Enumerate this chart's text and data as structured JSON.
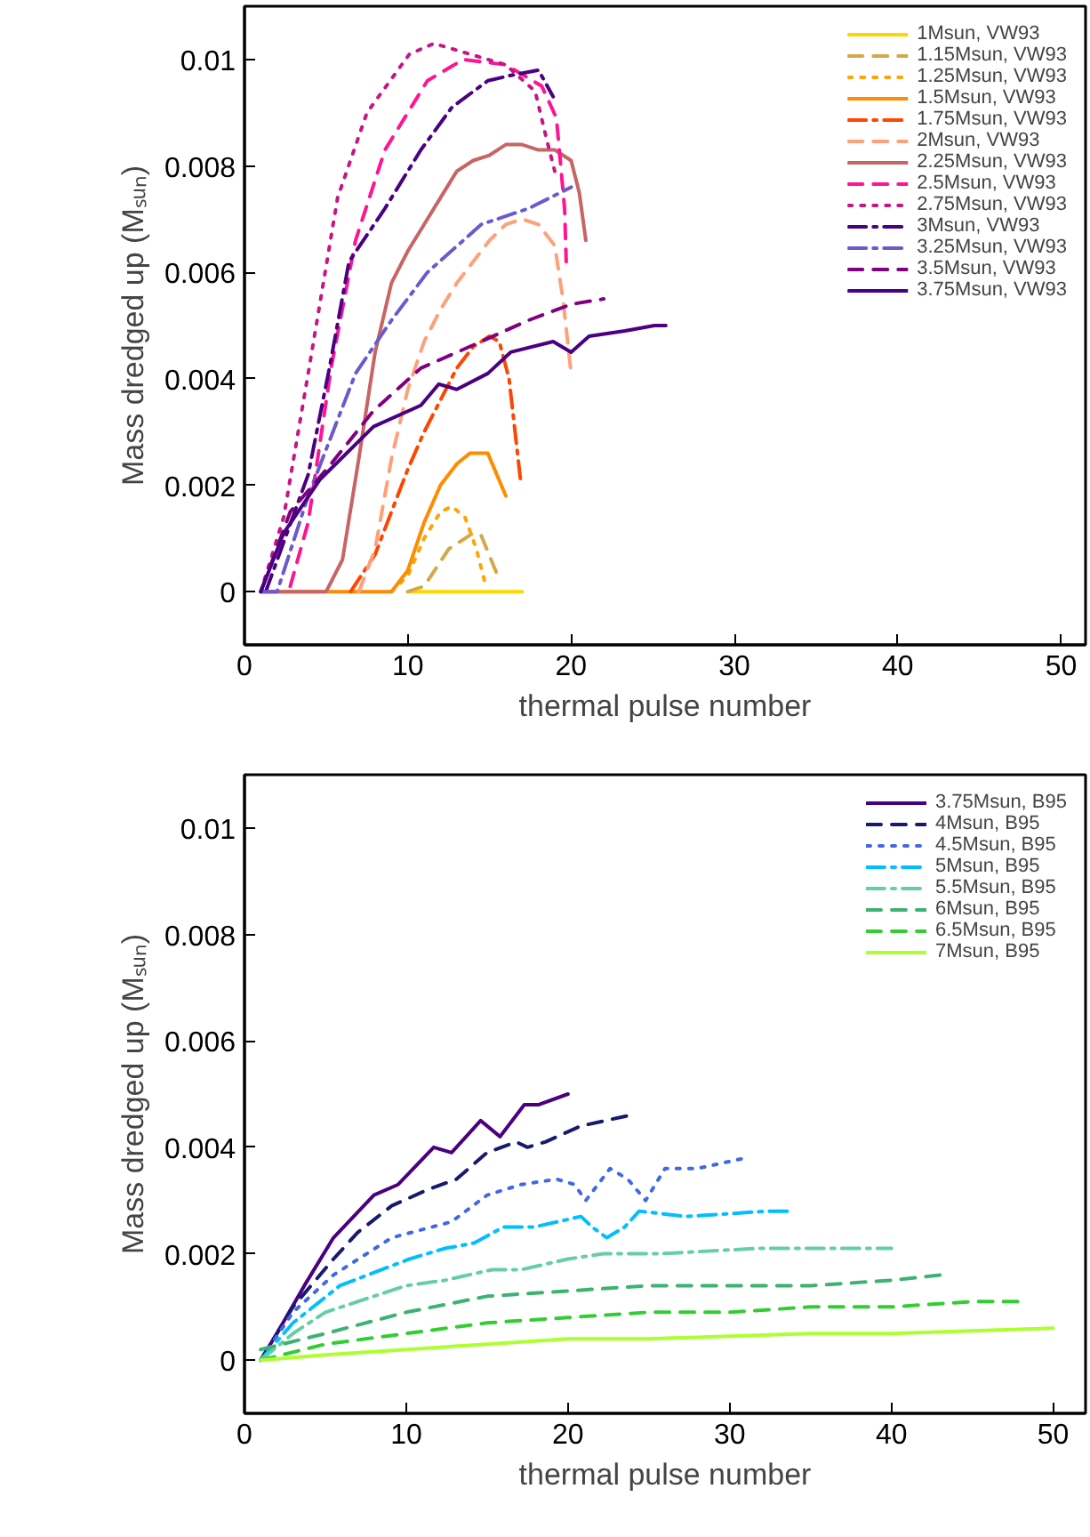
{
  "chart_data": [
    {
      "type": "line",
      "xlabel": "thermal pulse number",
      "ylabel": "Mass dredged up (Mₛᵤₙ)",
      "xlim": [
        0,
        51.5
      ],
      "ylim": [
        -0.001,
        0.011
      ],
      "xticks": [
        0,
        10,
        20,
        30,
        40,
        50
      ],
      "yticks": [
        0,
        0.002,
        0.004,
        0.006,
        0.008,
        0.01
      ],
      "legend": "top right",
      "grid": false,
      "series": [
        {
          "name": "1Msun, VW93",
          "color": "#ffd700",
          "line_style": "solid",
          "x": [
            10,
            15,
            17
          ],
          "values": [
            0,
            0,
            0
          ]
        },
        {
          "name": "1.15Msun, VW93",
          "color": "#d4a84a",
          "line_style": "dashed",
          "x": [
            10,
            11,
            12.5,
            14,
            14.5,
            15.5
          ],
          "values": [
            0,
            0.0001,
            0.0008,
            0.0011,
            0.00105,
            0.0003
          ]
        },
        {
          "name": "1.25Msun, VW93",
          "color": "#ffa500",
          "line_style": "dotted",
          "x": [
            9,
            10,
            11,
            12,
            12.7,
            13.5,
            14.2,
            14.7
          ],
          "values": [
            0,
            0.0003,
            0.001,
            0.0015,
            0.0016,
            0.0014,
            0.0008,
            0.0002
          ]
        },
        {
          "name": "1.5Msun, VW93",
          "color": "#ff8c00",
          "line_style": "solid",
          "x": [
            1,
            9,
            10,
            11,
            12,
            13,
            13.8,
            14.9,
            16
          ],
          "values": [
            0,
            0,
            0.0004,
            0.0013,
            0.002,
            0.0024,
            0.0026,
            0.0026,
            0.0018
          ]
        },
        {
          "name": "1.75Msun, VW93",
          "color": "#ff4500",
          "line_style": "dashdot",
          "x": [
            6.5,
            8,
            9,
            10,
            11,
            12,
            13,
            14,
            15,
            15.6,
            16.2,
            16.9
          ],
          "values": [
            0,
            0.0007,
            0.0015,
            0.0023,
            0.003,
            0.0036,
            0.0042,
            0.0046,
            0.0048,
            0.0047,
            0.004,
            0.0021
          ]
        },
        {
          "name": "2Msun, VW93",
          "color": "#ffa07a",
          "line_style": "dashed",
          "x": [
            7,
            8,
            9,
            10,
            11,
            12,
            13,
            14,
            15,
            16,
            17,
            18,
            19,
            19.5,
            20
          ],
          "values": [
            0,
            0.0008,
            0.0025,
            0.0038,
            0.0047,
            0.0053,
            0.0058,
            0.0062,
            0.0066,
            0.0069,
            0.007,
            0.0069,
            0.0065,
            0.0055,
            0.0041
          ]
        },
        {
          "name": "2.25Msun, VW93",
          "color": "#c86464",
          "line_style": "solid",
          "x": [
            1,
            5,
            6,
            7,
            8,
            9,
            10,
            11,
            12,
            13,
            14,
            15,
            16,
            17,
            18,
            19,
            20,
            20.5,
            20.9
          ],
          "values": [
            0,
            0,
            0.0006,
            0.0025,
            0.0045,
            0.0058,
            0.0064,
            0.0069,
            0.0074,
            0.0079,
            0.0081,
            0.0082,
            0.0084,
            0.0084,
            0.0083,
            0.0083,
            0.0081,
            0.0075,
            0.0066
          ]
        },
        {
          "name": "2.5Msun, VW93",
          "color": "#ff1493",
          "line_style": "dashed",
          "x": [
            2.8,
            3.9,
            5.3,
            6.8,
            8.6,
            11.2,
            13.4,
            16,
            18.2,
            19.1,
            19.6,
            19.7
          ],
          "values": [
            0.0001,
            0.0013,
            0.0042,
            0.0066,
            0.0083,
            0.0096,
            0.01,
            0.0099,
            0.0095,
            0.0089,
            0.0072,
            0.0062
          ]
        },
        {
          "name": "2.75Msun, VW93",
          "color": "#c71585",
          "line_style": "dotted",
          "x": [
            1,
            2.4,
            3.9,
            5.7,
            7.5,
            10.1,
            11.6,
            13.8,
            16,
            17.8,
            18.5,
            19
          ],
          "values": [
            0,
            0.0014,
            0.0041,
            0.0074,
            0.009,
            0.0101,
            0.0103,
            0.0101,
            0.0099,
            0.0094,
            0.0085,
            0.0079
          ]
        },
        {
          "name": "3Msun, VW93",
          "color": "#4b0082",
          "line_style": "dashdot",
          "x": [
            1.3,
            3.9,
            5.2,
            6.4,
            8.6,
            10.8,
            12.7,
            14.9,
            16.3,
            18,
            18.9
          ],
          "values": [
            0,
            0.0022,
            0.0042,
            0.0062,
            0.0072,
            0.0083,
            0.0091,
            0.0096,
            0.0097,
            0.0098,
            0.0093
          ]
        },
        {
          "name": "3.25Msun, VW93",
          "color": "#6a5acd",
          "line_style": "dashdot",
          "x": [
            1,
            2,
            3.9,
            6.8,
            9,
            11.2,
            14.5,
            17.4,
            20
          ],
          "values": [
            0,
            0,
            0.0018,
            0.0041,
            0.0051,
            0.006,
            0.0069,
            0.0072,
            0.0076
          ]
        },
        {
          "name": "3.5Msun, VW93",
          "color": "#800080",
          "line_style": "dashed",
          "x": [
            1,
            2.8,
            5.3,
            7.9,
            10.8,
            14.5,
            17.4,
            20,
            22
          ],
          "values": [
            0,
            0.0015,
            0.0024,
            0.0034,
            0.0042,
            0.0047,
            0.0051,
            0.0054,
            0.0055
          ]
        },
        {
          "name": "3.75Msun, VW93",
          "color": "#4b0082",
          "line_style": "solid",
          "x": [
            1,
            2.4,
            4.6,
            7.9,
            10.8,
            11.9,
            13,
            14.9,
            16.3,
            18.9,
            20,
            21.1,
            23.3,
            25.1,
            25.8
          ],
          "values": [
            0,
            0.0011,
            0.0021,
            0.0031,
            0.0035,
            0.0039,
            0.0038,
            0.0041,
            0.0045,
            0.0047,
            0.0045,
            0.0048,
            0.0049,
            0.005,
            0.005
          ]
        }
      ]
    },
    {
      "type": "line",
      "xlabel": "thermal pulse number",
      "ylabel": "Mass dredged up (Mₛᵤₙ)",
      "xlim": [
        0,
        52
      ],
      "ylim": [
        -0.001,
        0.011
      ],
      "xticks": [
        0,
        10,
        20,
        30,
        40,
        50
      ],
      "yticks": [
        0,
        0.002,
        0.004,
        0.006,
        0.008,
        0.01
      ],
      "legend": "top right",
      "grid": false,
      "series": [
        {
          "name": "3.75Msun, B95",
          "color": "#4b0082",
          "line_style": "solid",
          "x": [
            1,
            2,
            3.7,
            5.5,
            8,
            9.5,
            11.7,
            12.8,
            14.6,
            15.8,
            17.3,
            18.2,
            20
          ],
          "values": [
            0,
            0.0005,
            0.0014,
            0.0023,
            0.0031,
            0.0033,
            0.004,
            0.0039,
            0.0045,
            0.0042,
            0.0048,
            0.0048,
            0.005
          ]
        },
        {
          "name": "4Msun, B95",
          "color": "#191970",
          "line_style": "dashed",
          "x": [
            1,
            3,
            5.5,
            7,
            9.1,
            11.3,
            13.1,
            15,
            16.8,
            17.5,
            18.6,
            20.8,
            23.8
          ],
          "values": [
            0,
            0.001,
            0.0019,
            0.0024,
            0.0029,
            0.0032,
            0.0034,
            0.0039,
            0.0041,
            0.004,
            0.0041,
            0.0044,
            0.0046
          ]
        },
        {
          "name": "4.5Msun, B95",
          "color": "#4169e1",
          "line_style": "dotted",
          "x": [
            1,
            3,
            5.5,
            9.1,
            12.8,
            15,
            17.1,
            19.3,
            20.4,
            21.1,
            22.6,
            23.7,
            24.8,
            26,
            28,
            31
          ],
          "values": [
            0,
            0.0009,
            0.0016,
            0.0023,
            0.0026,
            0.0031,
            0.0033,
            0.0034,
            0.0033,
            0.003,
            0.0036,
            0.0034,
            0.003,
            0.0036,
            0.0036,
            0.0038
          ]
        },
        {
          "name": "5Msun, B95",
          "color": "#00bfff",
          "line_style": "dashdot",
          "x": [
            1,
            3,
            5.9,
            10.2,
            12.4,
            14.2,
            16,
            17.9,
            20.8,
            21.5,
            22.4,
            23.5,
            24.4,
            27.3,
            32.4,
            33.8
          ],
          "values": [
            0,
            0.0007,
            0.0014,
            0.0019,
            0.0021,
            0.0022,
            0.0025,
            0.0025,
            0.0027,
            0.0025,
            0.0023,
            0.0025,
            0.0028,
            0.0027,
            0.0028,
            0.0028
          ]
        },
        {
          "name": "5.5Msun, B95",
          "color": "#66cdaa",
          "line_style": "dashdot",
          "x": [
            1,
            3,
            5,
            8,
            10,
            12.4,
            15.3,
            17.1,
            20,
            22.2,
            25.8,
            31.7,
            40
          ],
          "values": [
            0,
            0.0005,
            0.0009,
            0.0012,
            0.0014,
            0.0015,
            0.0017,
            0.0017,
            0.0019,
            0.002,
            0.002,
            0.0021,
            0.0021
          ]
        },
        {
          "name": "6Msun, B95",
          "color": "#3cb371",
          "line_style": "dashed",
          "x": [
            1,
            5,
            10,
            15,
            20,
            25,
            30,
            35,
            40,
            43
          ],
          "values": [
            0.0002,
            0.0005,
            0.0009,
            0.0012,
            0.0013,
            0.0014,
            0.0014,
            0.0014,
            0.0015,
            0.0016
          ]
        },
        {
          "name": "6.5Msun, B95",
          "color": "#32cd32",
          "line_style": "dashed",
          "x": [
            1,
            5,
            10,
            15,
            20,
            25,
            30,
            35,
            40,
            45,
            48
          ],
          "values": [
            0,
            0.0003,
            0.0005,
            0.0007,
            0.0008,
            0.0009,
            0.0009,
            0.001,
            0.001,
            0.0011,
            0.0011
          ]
        },
        {
          "name": "7Msun, B95",
          "color": "#adff2f",
          "line_style": "solid",
          "x": [
            1,
            5,
            10,
            15,
            20,
            25,
            30,
            35,
            40,
            45,
            50
          ],
          "values": [
            0,
            0.0001,
            0.0002,
            0.0003,
            0.0004,
            0.0004,
            0.00045,
            0.0005,
            0.0005,
            0.00055,
            0.0006
          ]
        }
      ]
    }
  ]
}
